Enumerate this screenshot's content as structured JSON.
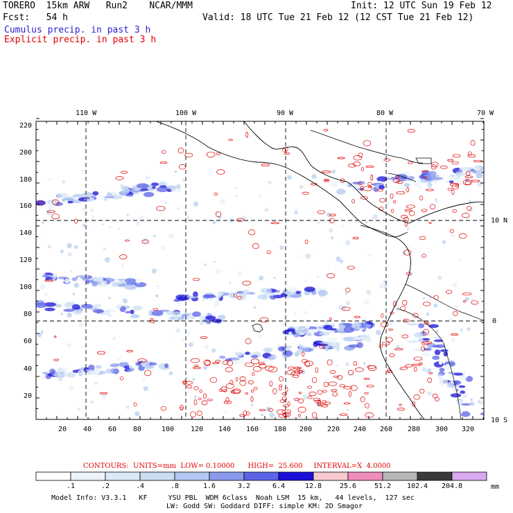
{
  "header": {
    "title": "TORERO  15km ARW   Run2    NCAR/MMM",
    "init": "Init: 12 UTC Sun 19 Feb 12",
    "fcst": "Fcst:   54 h",
    "valid": "Valid: 18 UTC Tue 21 Feb 12 (12 CST Tue 21 Feb 12)",
    "cumulus": "Cumulus precip. in past 3 h",
    "explicit": "Explicit precip. in past 3 h"
  },
  "map": {
    "lon_labels": [
      "110 W",
      "100 W",
      "90 W",
      "80 W",
      "70 W"
    ],
    "lat_labels": [
      "10 N",
      "0",
      "10 S"
    ],
    "y_ticks": [
      "220",
      "200",
      "180",
      "160",
      "140",
      "120",
      "100",
      "80",
      "60",
      "40",
      "20"
    ],
    "x_ticks": [
      "20",
      "40",
      "60",
      "80",
      "100",
      "120",
      "140",
      "160",
      "180",
      "200",
      "220",
      "240",
      "260",
      "280",
      "300",
      "320"
    ]
  },
  "contour_info": "CONTOURS:  UNITS=mm  LOW= 0.10000      HIGH=  25.600     INTERVAL=X  4.0000",
  "colorbar": {
    "labels": [
      ".1",
      ".2",
      ".4",
      ".8",
      "1.6",
      "3.2",
      "6.4",
      "12.8",
      "25.6",
      "51.2",
      "102.4",
      "204.8"
    ],
    "unit": "mm",
    "colors": [
      "#ffffff",
      "#eef4fb",
      "#dce9f7",
      "#c9ddf3",
      "#b2c7f0",
      "#8a9bed",
      "#5b63e6",
      "#1a10d8",
      "#f7c9cf",
      "#f08dbd",
      "#b8b8b8",
      "#3a3a3a",
      "#d9a9ef"
    ]
  },
  "footer": {
    "line1": "Model Info: V3.3.1   KF     YSU PBL  WDM 6class  Noah LSM  15 km,   44 levels,  127 sec",
    "line2": "LW: Godd SW: Goddard DIFF: simple KM: 2D Smagor"
  }
}
